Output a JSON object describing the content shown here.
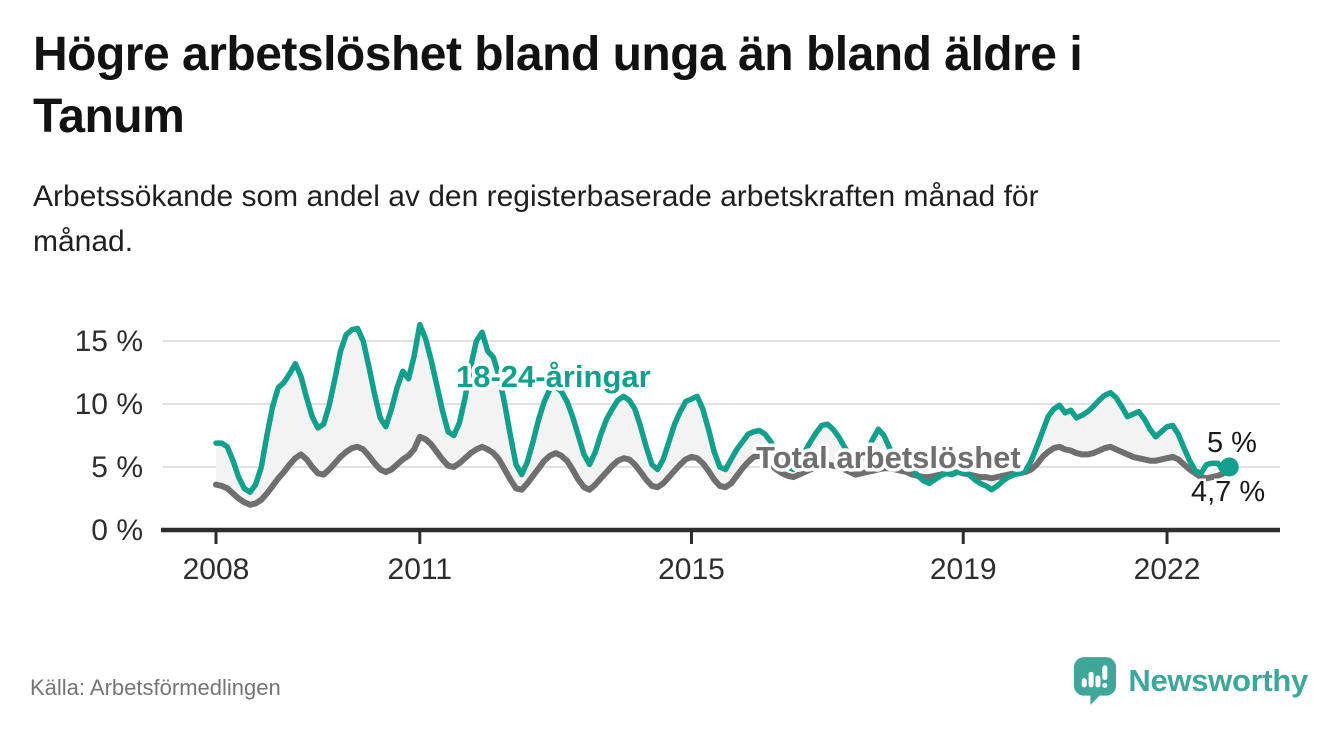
{
  "header": {
    "title_lines": [
      "Högre arbetslöshet bland unga än bland äldre i",
      "Tanum"
    ],
    "subtitle_lines": [
      "Arbetssökande som andel av den registerbaserade arbetskraften månad för",
      "månad."
    ]
  },
  "footer": {
    "source": "Källa: Arbetsförmedlingen",
    "logo_text": "Newsworthy"
  },
  "colors": {
    "youth": "#12a08d",
    "total": "#6f6f6f",
    "between_fill": "#f3f3f3",
    "grid": "#e1e1e1",
    "axis": "#2d2d2d",
    "tick_text": "#2e2e2e",
    "end_label_text": "#1a1a1a",
    "label_halo": "#ffffff",
    "logo": "#3ea79a"
  },
  "chart_data": {
    "type": "line",
    "title": "Högre arbetslöshet bland unga än bland äldre i Tanum",
    "subtitle": "Arbetssökande som andel av den registerbaserade arbetskraften månad för månad.",
    "xlabel": "",
    "ylabel": "",
    "x_start_year": 2008,
    "points_per_year": 12,
    "x_range_years": [
      2008,
      2023
    ],
    "ylim": [
      0,
      17
    ],
    "grid": "horizontal",
    "legend_position": "inline-labels",
    "yticks": [
      {
        "value": 0,
        "label": "0 %"
      },
      {
        "value": 5,
        "label": "5 %"
      },
      {
        "value": 10,
        "label": "10 %"
      },
      {
        "value": 15,
        "label": "15 %"
      }
    ],
    "xticks": [
      {
        "year": 2008,
        "label": "2008"
      },
      {
        "year": 2011,
        "label": "2011"
      },
      {
        "year": 2015,
        "label": "2015"
      },
      {
        "year": 2019,
        "label": "2019"
      },
      {
        "year": 2022,
        "label": "2022"
      }
    ],
    "series": [
      {
        "name": "18-24-åringar",
        "end_label": "5 %",
        "end_value": 5.0,
        "values": [
          6.9,
          6.9,
          6.6,
          5.5,
          4.2,
          3.3,
          3.0,
          3.6,
          5.0,
          7.5,
          9.8,
          11.3,
          11.7,
          12.4,
          13.2,
          12.2,
          10.5,
          9.0,
          8.1,
          8.4,
          9.9,
          12.0,
          14.2,
          15.5,
          15.9,
          16.0,
          15.0,
          13.0,
          10.8,
          8.9,
          8.2,
          9.6,
          11.3,
          12.6,
          12.0,
          13.8,
          16.3,
          15.2,
          13.5,
          11.5,
          9.5,
          7.8,
          7.5,
          8.5,
          10.5,
          13.0,
          15.0,
          15.7,
          14.2,
          13.7,
          12.2,
          10.0,
          7.5,
          5.2,
          4.4,
          5.4,
          7.0,
          8.8,
          10.2,
          11.2,
          11.4,
          11.0,
          10.2,
          9.0,
          7.5,
          6.0,
          5.2,
          6.2,
          7.6,
          8.8,
          9.6,
          10.3,
          10.6,
          10.3,
          9.6,
          8.2,
          6.6,
          5.2,
          4.8,
          5.6,
          7.0,
          8.4,
          9.4,
          10.2,
          10.4,
          10.6,
          9.6,
          8.0,
          6.2,
          5.0,
          4.8,
          5.6,
          6.4,
          7.0,
          7.6,
          7.8,
          7.9,
          7.6,
          7.0,
          6.2,
          5.4,
          5.0,
          4.8,
          5.4,
          6.2,
          7.0,
          7.7,
          8.3,
          8.4,
          8.0,
          7.4,
          6.6,
          5.9,
          5.4,
          5.6,
          6.3,
          7.2,
          8.0,
          7.5,
          6.5,
          5.8,
          5.5,
          5.2,
          4.8,
          4.3,
          3.9,
          3.7,
          4.0,
          4.3,
          4.5,
          4.4,
          4.6,
          4.6,
          4.4,
          4.0,
          3.7,
          3.5,
          3.2,
          3.5,
          3.9,
          4.2,
          4.4,
          4.5,
          4.7,
          5.5,
          6.6,
          7.8,
          9.0,
          9.6,
          9.9,
          9.3,
          9.5,
          8.9,
          9.1,
          9.4,
          9.8,
          10.3,
          10.7,
          10.9,
          10.5,
          9.8,
          9.0,
          9.2,
          9.4,
          8.8,
          8.0,
          7.4,
          7.8,
          8.2,
          8.3,
          7.6,
          6.5,
          5.5,
          4.7,
          4.5,
          5.2,
          5.3,
          5.3,
          4.6,
          5.0
        ]
      },
      {
        "name": "Total arbetslöshet",
        "end_label": "4,7 %",
        "end_value": 4.7,
        "values": [
          3.6,
          3.5,
          3.3,
          2.9,
          2.5,
          2.2,
          2.0,
          2.1,
          2.4,
          2.9,
          3.5,
          4.1,
          4.6,
          5.2,
          5.7,
          6.0,
          5.6,
          5.0,
          4.5,
          4.4,
          4.8,
          5.3,
          5.8,
          6.2,
          6.5,
          6.6,
          6.4,
          5.9,
          5.3,
          4.8,
          4.6,
          4.8,
          5.2,
          5.6,
          5.9,
          6.4,
          7.4,
          7.2,
          6.8,
          6.2,
          5.6,
          5.1,
          5.0,
          5.3,
          5.7,
          6.1,
          6.4,
          6.6,
          6.4,
          6.1,
          5.6,
          4.8,
          4.0,
          3.3,
          3.2,
          3.7,
          4.3,
          4.9,
          5.5,
          5.9,
          6.1,
          5.9,
          5.5,
          4.8,
          4.0,
          3.4,
          3.2,
          3.6,
          4.1,
          4.6,
          5.1,
          5.5,
          5.7,
          5.6,
          5.2,
          4.6,
          4.0,
          3.5,
          3.4,
          3.7,
          4.2,
          4.7,
          5.2,
          5.6,
          5.8,
          5.7,
          5.3,
          4.7,
          4.0,
          3.5,
          3.4,
          3.7,
          4.3,
          4.9,
          5.4,
          5.8,
          5.9,
          5.6,
          5.2,
          4.8,
          4.5,
          4.3,
          4.2,
          4.4,
          4.6,
          4.8,
          5.0,
          5.1,
          5.2,
          5.1,
          5.0,
          4.8,
          4.6,
          4.4,
          4.5,
          4.6,
          4.7,
          4.8,
          4.9,
          4.9,
          4.8,
          4.7,
          4.6,
          4.4,
          4.3,
          4.2,
          4.2,
          4.3,
          4.4,
          4.5,
          4.5,
          4.6,
          4.5,
          4.4,
          4.3,
          4.2,
          4.2,
          4.1,
          4.2,
          4.3,
          4.4,
          4.5,
          4.5,
          4.6,
          4.8,
          5.2,
          5.8,
          6.2,
          6.5,
          6.6,
          6.4,
          6.3,
          6.1,
          6.0,
          6.0,
          6.1,
          6.3,
          6.5,
          6.6,
          6.4,
          6.2,
          6.0,
          5.8,
          5.7,
          5.6,
          5.5,
          5.5,
          5.6,
          5.7,
          5.8,
          5.6,
          5.2,
          4.8,
          4.5,
          4.2,
          4.1,
          4.2,
          4.3,
          4.5,
          4.7
        ]
      }
    ]
  }
}
